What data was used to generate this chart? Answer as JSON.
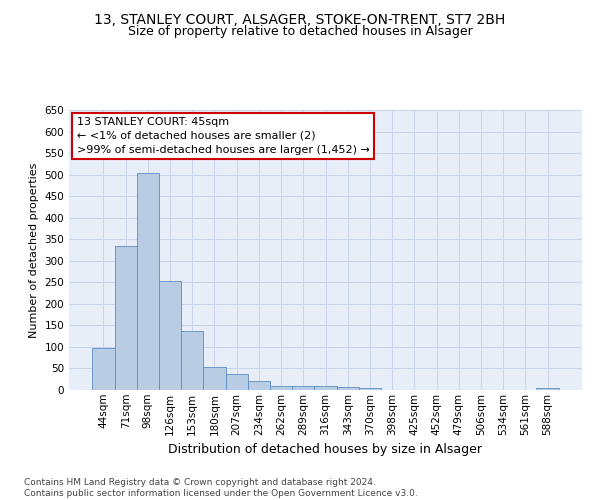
{
  "title_line1": "13, STANLEY COURT, ALSAGER, STOKE-ON-TRENT, ST7 2BH",
  "title_line2": "Size of property relative to detached houses in Alsager",
  "xlabel": "Distribution of detached houses by size in Alsager",
  "ylabel": "Number of detached properties",
  "categories": [
    "44sqm",
    "71sqm",
    "98sqm",
    "126sqm",
    "153sqm",
    "180sqm",
    "207sqm",
    "234sqm",
    "262sqm",
    "289sqm",
    "316sqm",
    "343sqm",
    "370sqm",
    "398sqm",
    "425sqm",
    "452sqm",
    "479sqm",
    "506sqm",
    "534sqm",
    "561sqm",
    "588sqm"
  ],
  "values": [
    97,
    335,
    503,
    253,
    137,
    53,
    37,
    21,
    10,
    10,
    10,
    7,
    4,
    1,
    1,
    1,
    1,
    1,
    1,
    1,
    5
  ],
  "bar_color": "#b8cce4",
  "bar_edge_color": "#5b8ec4",
  "annotation_text": "13 STANLEY COURT: 45sqm\n← <1% of detached houses are smaller (2)\n>99% of semi-detached houses are larger (1,452) →",
  "annotation_box_color": "#ffffff",
  "annotation_box_edge_color": "#cc0000",
  "ylim": [
    0,
    650
  ],
  "yticks": [
    0,
    50,
    100,
    150,
    200,
    250,
    300,
    350,
    400,
    450,
    500,
    550,
    600,
    650
  ],
  "grid_color": "#c8d4e8",
  "bg_color": "#e8eef8",
  "footer_text": "Contains HM Land Registry data © Crown copyright and database right 2024.\nContains public sector information licensed under the Open Government Licence v3.0.",
  "title_fontsize": 10,
  "subtitle_fontsize": 9,
  "xlabel_fontsize": 9,
  "ylabel_fontsize": 8,
  "tick_fontsize": 7.5,
  "annotation_fontsize": 8
}
